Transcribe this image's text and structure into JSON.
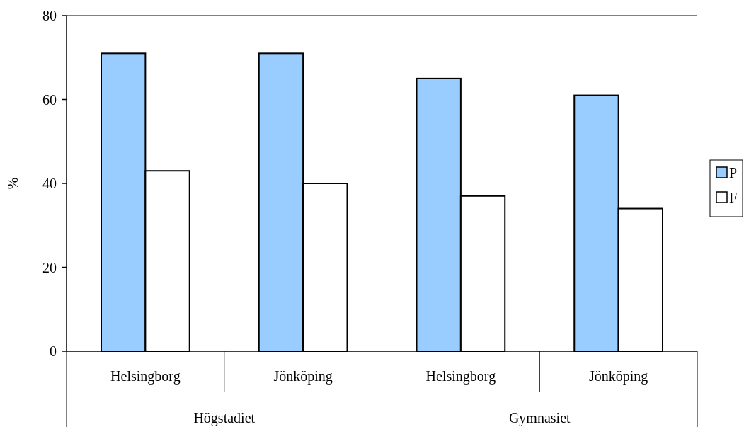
{
  "chart_data": {
    "type": "bar",
    "ylabel": "%",
    "categories": [
      "Helsingborg",
      "Jönköping",
      "Helsingborg",
      "Jönköping"
    ],
    "annotations": [
      "Högstadiet",
      "Gymnasiet"
    ],
    "series": [
      {
        "name": "P",
        "color": "#99ccff",
        "values": [
          71,
          71,
          65,
          61
        ]
      },
      {
        "name": "F",
        "color": "#ffffff",
        "values": [
          43,
          40,
          37,
          34
        ]
      }
    ],
    "ylim": [
      0,
      80
    ],
    "yticks": [
      0,
      20,
      40,
      60,
      80
    ],
    "legend": "right"
  }
}
